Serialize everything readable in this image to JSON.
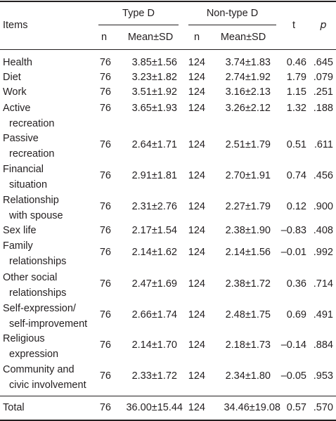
{
  "header": {
    "items": "Items",
    "type_d": "Type D",
    "non_type_d": "Non-type D",
    "n": "n",
    "mean_sd": "Mean±SD",
    "t": "t",
    "p": "p"
  },
  "rows": [
    {
      "item": [
        "Health"
      ],
      "n1": "76",
      "m1": "3.85±1.56",
      "n2": "124",
      "m2": "3.74±1.83",
      "t": "0.46",
      "p": ".645"
    },
    {
      "item": [
        "Diet"
      ],
      "n1": "76",
      "m1": "3.23±1.82",
      "n2": "124",
      "m2": "2.74±1.92",
      "t": "1.79",
      "p": ".079"
    },
    {
      "item": [
        "Work"
      ],
      "n1": "76",
      "m1": "3.51±1.92",
      "n2": "124",
      "m2": "3.16±2.13",
      "t": "1.15",
      "p": ".251"
    },
    {
      "item": [
        "Active",
        "recreation"
      ],
      "n1": "76",
      "m1": "3.65±1.93",
      "n2": "124",
      "m2": "3.26±2.12",
      "t": "1.32",
      "p": ".188"
    },
    {
      "item": [
        "Passive",
        "recreation"
      ],
      "n1": "76",
      "m1": "2.64±1.71",
      "n2": "124",
      "m2": "2.51±1.79",
      "t": "0.51",
      "p": ".611"
    },
    {
      "item": [
        "Financial",
        "situation"
      ],
      "n1": "76",
      "m1": "2.91±1.81",
      "n2": "124",
      "m2": "2.70±1.91",
      "t": "0.74",
      "p": ".456"
    },
    {
      "item": [
        "Relationship",
        "with spouse"
      ],
      "n1": "76",
      "m1": "2.31±2.76",
      "n2": "124",
      "m2": "2.27±1.79",
      "t": "0.12",
      "p": ".900"
    },
    {
      "item": [
        "Sex life"
      ],
      "n1": "76",
      "m1": "2.17±1.54",
      "n2": "124",
      "m2": "2.38±1.90",
      "t": "–0.83",
      "p": ".408"
    },
    {
      "item": [
        "Family",
        "relationships"
      ],
      "n1": "76",
      "m1": "2.14±1.62",
      "n2": "124",
      "m2": "2.14±1.56",
      "t": "–0.01",
      "p": ".992"
    },
    {
      "item": [
        "Other social",
        "relationships"
      ],
      "n1": "76",
      "m1": "2.47±1.69",
      "n2": "124",
      "m2": "2.38±1.72",
      "t": "0.36",
      "p": ".714"
    },
    {
      "item": [
        "Self-expression/",
        "self-improvement"
      ],
      "n1": "76",
      "m1": "2.66±1.74",
      "n2": "124",
      "m2": "2.48±1.75",
      "t": "0.69",
      "p": ".491"
    },
    {
      "item": [
        "Religious",
        "expression"
      ],
      "n1": "76",
      "m1": "2.14±1.70",
      "n2": "124",
      "m2": "2.18±1.73",
      "t": "–0.14",
      "p": ".884"
    },
    {
      "item": [
        "Community and",
        "civic involvement"
      ],
      "n1": "76",
      "m1": "2.33±1.72",
      "n2": "124",
      "m2": "2.34±1.80",
      "t": "–0.05",
      "p": ".953"
    }
  ],
  "total": {
    "item": "Total",
    "n1": "76",
    "m1": "36.00±15.44",
    "n2": "124",
    "m2": "34.46±19.08",
    "t": "0.57",
    "p": ".570"
  }
}
